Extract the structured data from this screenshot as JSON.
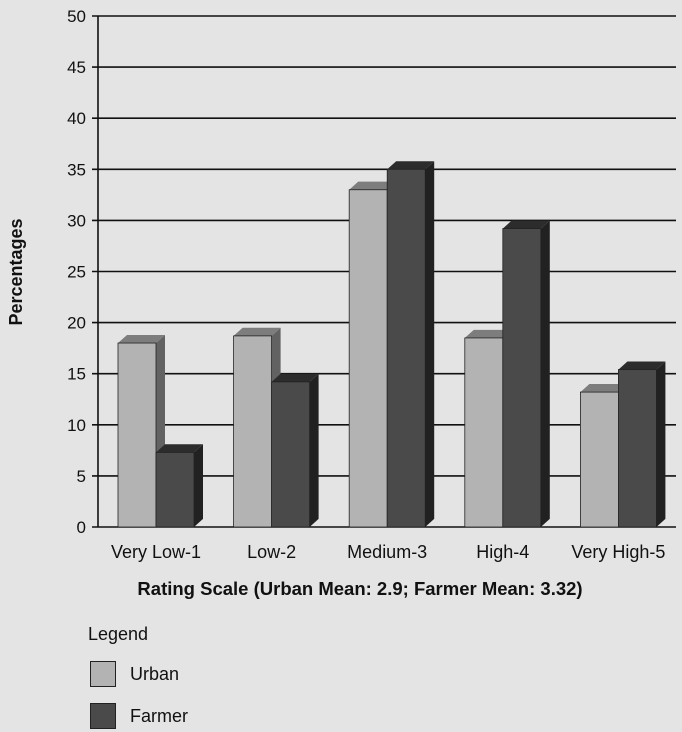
{
  "colors": {
    "urban": "#b3b3b3",
    "farmer": "#4a4a4a",
    "background": "#e4e4e4",
    "grid": "#111111"
  },
  "chart_data": {
    "type": "bar",
    "categories": [
      "Very Low-1",
      "Low-2",
      "Medium-3",
      "High-4",
      "Very High-5"
    ],
    "series": [
      {
        "name": "Urban",
        "values": [
          18,
          18.7,
          33,
          18.5,
          13.2
        ]
      },
      {
        "name": "Farmer",
        "values": [
          7.3,
          14.2,
          35,
          29.2,
          15.4
        ]
      }
    ],
    "yticks": [
      "0",
      "5",
      "10",
      "15",
      "20",
      "25",
      "30",
      "35",
      "40",
      "45",
      "50"
    ],
    "ylim": [
      0,
      50
    ],
    "ylabel": "Percentages",
    "xlabel": "Rating Scale (Urban Mean: 2.9; Farmer Mean: 3.32)",
    "grid": "horizontal",
    "legend": {
      "title": "Legend",
      "placement": "bottom-left",
      "items": [
        "Urban",
        "Farmer"
      ]
    }
  }
}
